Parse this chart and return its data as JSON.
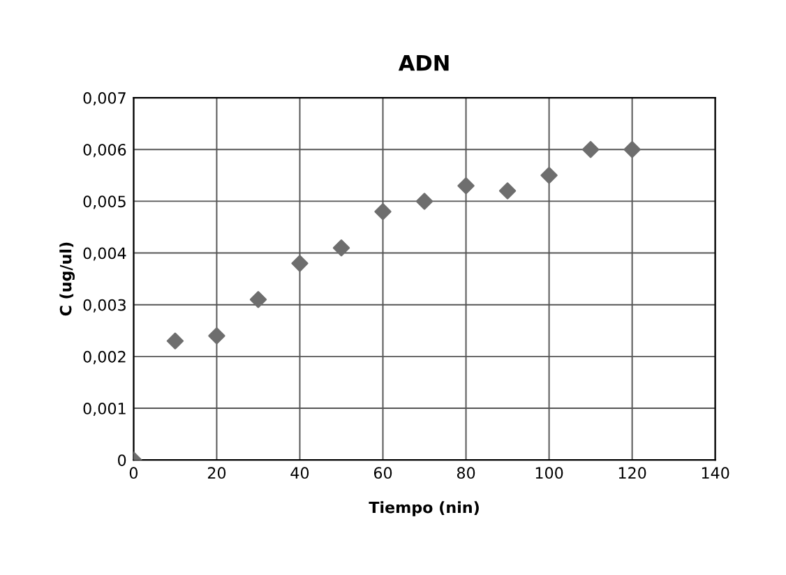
{
  "chart_data": {
    "type": "scatter",
    "title": "ADN",
    "xlabel": "Tiempo (nin)",
    "ylabel": "C (ug/ul)",
    "x": [
      0,
      10,
      20,
      30,
      40,
      50,
      60,
      70,
      80,
      90,
      100,
      110,
      120
    ],
    "series": [
      {
        "color": "#6e6e6e",
        "values": [
          0,
          0.0023,
          0.0024,
          0.0031,
          0.0038,
          0.0041,
          0.0048,
          0.005,
          0.0053,
          0.0052,
          0.0055,
          0.006,
          0.006
        ]
      }
    ],
    "xlim": [
      0,
      140
    ],
    "xticks": [
      0,
      20,
      40,
      60,
      80,
      100,
      120,
      140
    ],
    "ylim": [
      0,
      0.007
    ],
    "yticks": [
      0,
      {
        "value": 0.001,
        "label": "0,001"
      },
      {
        "value": 0.002,
        "label": "0,002"
      },
      {
        "value": 0.003,
        "label": "0,003"
      },
      {
        "value": 0.004,
        "label": "0,004"
      },
      {
        "value": 0.005,
        "label": "0,005"
      },
      {
        "value": 0.006,
        "label": "0,006"
      },
      {
        "value": 0.007,
        "label": "0,007"
      }
    ],
    "grid": true,
    "marker": "diamond",
    "legend": false
  }
}
